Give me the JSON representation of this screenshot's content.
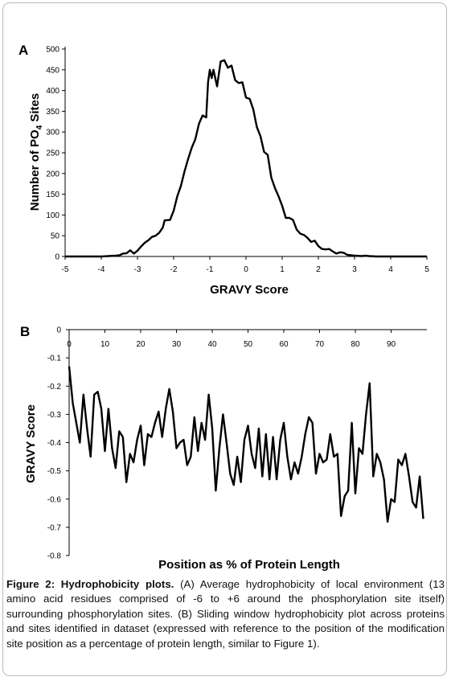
{
  "chart_data": [
    {
      "panel": "A",
      "type": "line",
      "xlabel": "GRAVY Score",
      "ylabel": "Number of PO4 Sites",
      "ylabel_parts": [
        "Number of PO",
        "4",
        " Sites"
      ],
      "xlim": [
        -5,
        5
      ],
      "ylim": [
        0,
        500
      ],
      "xticks": [
        -5,
        -4,
        -3,
        -2,
        -1,
        0,
        1,
        2,
        3,
        4,
        5
      ],
      "yticks": [
        0,
        50,
        100,
        150,
        200,
        250,
        300,
        350,
        400,
        450,
        500
      ],
      "grid": false,
      "legend": "none",
      "series": [
        {
          "color": "#000000",
          "points": [
            [
              -5.0,
              0
            ],
            [
              -4.5,
              0
            ],
            [
              -4.0,
              0
            ],
            [
              -3.8,
              1
            ],
            [
              -3.6,
              2
            ],
            [
              -3.5,
              3
            ],
            [
              -3.4,
              7
            ],
            [
              -3.3,
              8
            ],
            [
              -3.2,
              15
            ],
            [
              -3.1,
              7
            ],
            [
              -3.0,
              14
            ],
            [
              -2.9,
              24
            ],
            [
              -2.8,
              33
            ],
            [
              -2.7,
              39
            ],
            [
              -2.6,
              47
            ],
            [
              -2.5,
              50
            ],
            [
              -2.4,
              57
            ],
            [
              -2.3,
              70
            ],
            [
              -2.25,
              87
            ],
            [
              -2.1,
              88
            ],
            [
              -2.0,
              110
            ],
            [
              -1.9,
              145
            ],
            [
              -1.8,
              170
            ],
            [
              -1.7,
              205
            ],
            [
              -1.6,
              235
            ],
            [
              -1.5,
              262
            ],
            [
              -1.4,
              283
            ],
            [
              -1.3,
              320
            ],
            [
              -1.2,
              340
            ],
            [
              -1.1,
              335
            ],
            [
              -1.05,
              420
            ],
            [
              -1.0,
              450
            ],
            [
              -0.95,
              430
            ],
            [
              -0.9,
              450
            ],
            [
              -0.8,
              410
            ],
            [
              -0.7,
              470
            ],
            [
              -0.6,
              473
            ],
            [
              -0.5,
              455
            ],
            [
              -0.4,
              460
            ],
            [
              -0.3,
              425
            ],
            [
              -0.2,
              418
            ],
            [
              -0.1,
              420
            ],
            [
              0.0,
              383
            ],
            [
              0.1,
              380
            ],
            [
              0.2,
              355
            ],
            [
              0.3,
              312
            ],
            [
              0.4,
              290
            ],
            [
              0.5,
              252
            ],
            [
              0.6,
              245
            ],
            [
              0.7,
              190
            ],
            [
              0.8,
              165
            ],
            [
              0.9,
              145
            ],
            [
              1.0,
              122
            ],
            [
              1.1,
              93
            ],
            [
              1.2,
              93
            ],
            [
              1.3,
              88
            ],
            [
              1.4,
              65
            ],
            [
              1.5,
              55
            ],
            [
              1.6,
              52
            ],
            [
              1.7,
              45
            ],
            [
              1.8,
              35
            ],
            [
              1.9,
              38
            ],
            [
              2.0,
              25
            ],
            [
              2.1,
              18
            ],
            [
              2.2,
              17
            ],
            [
              2.3,
              18
            ],
            [
              2.4,
              12
            ],
            [
              2.5,
              7
            ],
            [
              2.6,
              10
            ],
            [
              2.7,
              9
            ],
            [
              2.8,
              4
            ],
            [
              2.9,
              3
            ],
            [
              3.0,
              2
            ],
            [
              3.2,
              1
            ],
            [
              3.3,
              2
            ],
            [
              3.4,
              1
            ],
            [
              3.6,
              0
            ],
            [
              4.0,
              0
            ],
            [
              4.5,
              0
            ],
            [
              5.0,
              0
            ]
          ]
        }
      ]
    },
    {
      "panel": "B",
      "type": "line",
      "xlabel": "Position as % of Protein Length",
      "ylabel": "GRAVY Score",
      "xlim": [
        0,
        100
      ],
      "ylim": [
        -0.8,
        0
      ],
      "xticks": [
        0,
        10,
        20,
        30,
        40,
        50,
        60,
        70,
        80,
        90
      ],
      "yticks": [
        0,
        -0.1,
        -0.2,
        -0.3,
        -0.4,
        -0.5,
        -0.6,
        -0.7,
        -0.8
      ],
      "ytick_labels": [
        "0",
        "-0.1",
        "-0.2",
        "-0.3",
        "-0.4",
        "-0.5",
        "-0.6",
        "-0.7",
        "-0.8"
      ],
      "grid": false,
      "legend": "none",
      "series": [
        {
          "color": "#000000",
          "x_start": 0,
          "x_step": 1,
          "values": [
            -0.13,
            -0.26,
            -0.33,
            -0.4,
            -0.23,
            -0.35,
            -0.45,
            -0.23,
            -0.22,
            -0.28,
            -0.43,
            -0.28,
            -0.42,
            -0.49,
            -0.36,
            -0.38,
            -0.54,
            -0.44,
            -0.47,
            -0.39,
            -0.34,
            -0.48,
            -0.37,
            -0.38,
            -0.33,
            -0.29,
            -0.38,
            -0.28,
            -0.21,
            -0.29,
            -0.42,
            -0.4,
            -0.39,
            -0.48,
            -0.45,
            -0.31,
            -0.43,
            -0.33,
            -0.39,
            -0.23,
            -0.35,
            -0.57,
            -0.42,
            -0.3,
            -0.4,
            -0.51,
            -0.55,
            -0.45,
            -0.54,
            -0.39,
            -0.34,
            -0.44,
            -0.49,
            -0.35,
            -0.52,
            -0.37,
            -0.53,
            -0.38,
            -0.53,
            -0.39,
            -0.33,
            -0.45,
            -0.53,
            -0.47,
            -0.51,
            -0.45,
            -0.37,
            -0.31,
            -0.33,
            -0.51,
            -0.44,
            -0.47,
            -0.46,
            -0.37,
            -0.45,
            -0.44,
            -0.66,
            -0.59,
            -0.57,
            -0.33,
            -0.58,
            -0.42,
            -0.44,
            -0.3,
            -0.19,
            -0.52,
            -0.44,
            -0.47,
            -0.53,
            -0.68,
            -0.6,
            -0.61,
            -0.46,
            -0.48,
            -0.44,
            -0.52,
            -0.61,
            -0.63,
            -0.52,
            -0.67
          ]
        }
      ]
    }
  ],
  "panels": [
    {
      "letter": "A"
    },
    {
      "letter": "B"
    }
  ],
  "caption": {
    "label": "Figure 2: Hydrophobicity plots.",
    "text": " (A) Average hydrophobicity of local environment (13 amino acid residues comprised of -6 to +6 around the phosphorylation site itself) surrounding phosphorylation sites. (B) Sliding window hydrophobicity plot across proteins and sites identified in dataset (expressed with reference to the position of the modification site position as a percentage of protein length, similar to Figure 1)."
  }
}
